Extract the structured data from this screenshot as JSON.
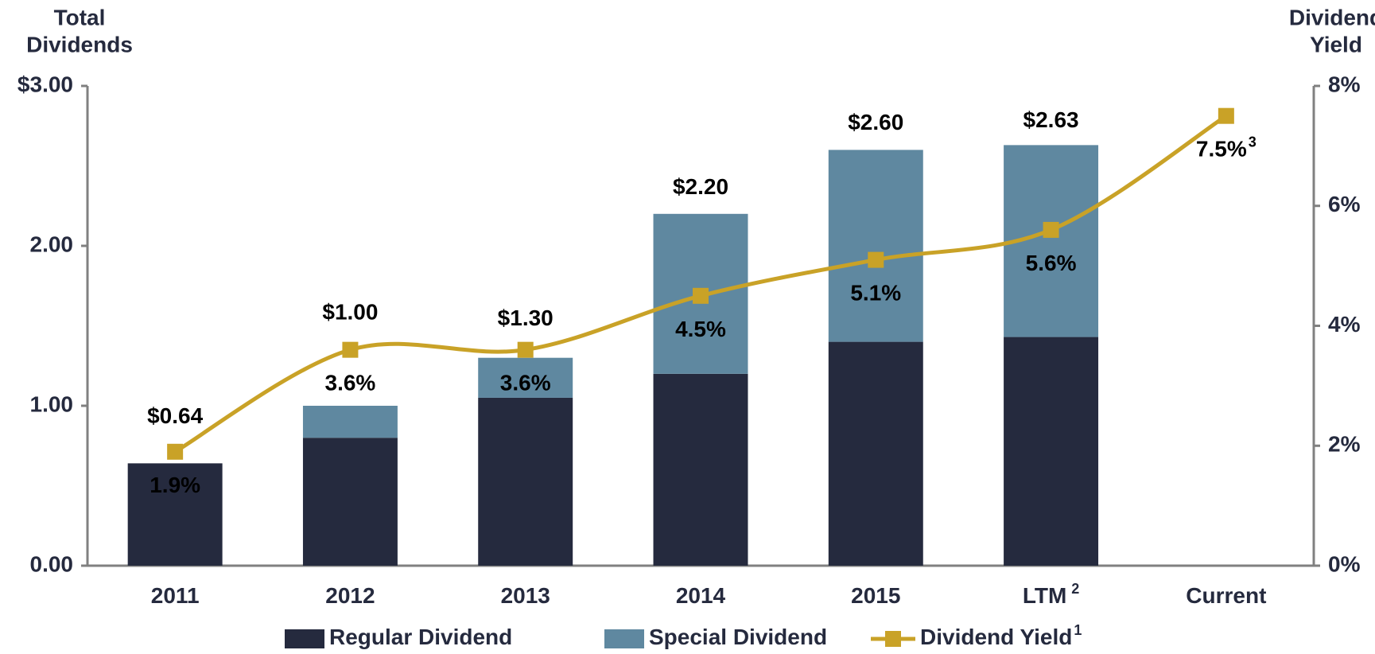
{
  "chart_data": {
    "type": "bar",
    "ylabel": [
      "Total",
      "Dividends"
    ],
    "y2label": [
      "Dividend",
      "Yield"
    ],
    "categories": [
      "2011",
      "2012",
      "2013",
      "2014",
      "2015",
      "LTM",
      "Current"
    ],
    "category_superscripts": [
      null,
      null,
      null,
      null,
      null,
      "2",
      null
    ],
    "total_labels": [
      "$0.64",
      "$1.00",
      "$1.30",
      "$2.20",
      "$2.60",
      "$2.63",
      null
    ],
    "series": [
      {
        "name": "Regular Dividend",
        "type": "bar",
        "color": "#252a3e",
        "values": [
          0.64,
          0.8,
          1.05,
          1.2,
          1.4,
          1.43,
          null
        ]
      },
      {
        "name": "Special Dividend",
        "type": "bar",
        "color": "#5f88a0",
        "values": [
          null,
          0.2,
          0.25,
          1.0,
          1.2,
          1.2,
          null
        ]
      },
      {
        "name": "Dividend Yield",
        "type": "line",
        "axis": "y2",
        "color": "#c9a227",
        "legend_superscript": "1",
        "values": [
          1.9,
          3.6,
          3.6,
          4.5,
          5.1,
          5.6,
          7.5
        ],
        "value_labels": [
          "1.9%",
          "3.6%",
          "3.6%",
          "4.5%",
          "5.1%",
          "5.6%",
          "7.5%"
        ],
        "label_superscripts": [
          null,
          null,
          null,
          null,
          null,
          null,
          "3"
        ]
      }
    ],
    "ylim": [
      0,
      3
    ],
    "yticks": [
      {
        "value": 0,
        "label": "0.00"
      },
      {
        "value": 1,
        "label": "1.00"
      },
      {
        "value": 2,
        "label": "2.00"
      },
      {
        "value": 3,
        "label": "$3.00"
      }
    ],
    "y2lim": [
      0,
      8
    ],
    "y2ticks": [
      {
        "value": 0,
        "label": "0%"
      },
      {
        "value": 2,
        "label": "2%"
      },
      {
        "value": 4,
        "label": "4%"
      },
      {
        "value": 6,
        "label": "6%"
      },
      {
        "value": 8,
        "label": "8%"
      }
    ],
    "grid": false
  }
}
